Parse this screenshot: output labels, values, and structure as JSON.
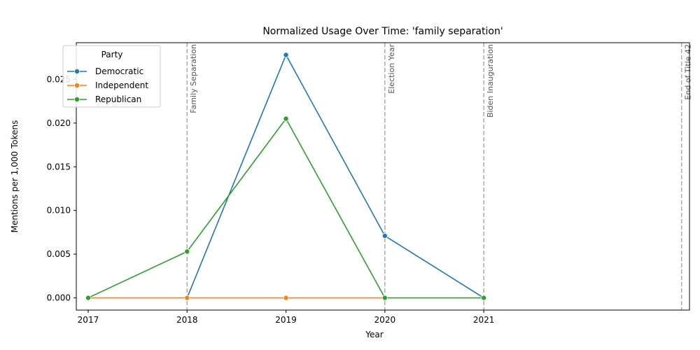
{
  "chart_data": {
    "type": "line",
    "title": "Normalized Usage Over Time: 'family separation'",
    "xlabel": "Year",
    "ylabel": "Mentions per 1,000 Tokens",
    "xlim": [
      2016.88,
      2023.08
    ],
    "ylim": [
      -0.0014,
      0.0292
    ],
    "x_ticks": [
      2017,
      2018,
      2019,
      2020,
      2021
    ],
    "y_ticks": [
      0.0,
      0.005,
      0.01,
      0.015,
      0.02,
      0.025
    ],
    "y_tick_labels": [
      "0.000",
      "0.005",
      "0.010",
      "0.015",
      "0.020",
      "0.025"
    ],
    "grid": false,
    "legend": {
      "title": "Party",
      "placement": "top-left"
    },
    "series": [
      {
        "name": "Democratic",
        "color": "#1f77b4",
        "x": [
          2018,
          2019,
          2020,
          2021
        ],
        "values": [
          0.0,
          0.0278,
          0.0071,
          0.0
        ]
      },
      {
        "name": "Independent",
        "color": "#ff7f0e",
        "x": [
          2017,
          2018,
          2019,
          2020
        ],
        "values": [
          0.0,
          0.0,
          0.0,
          0.0
        ]
      },
      {
        "name": "Republican",
        "color": "#2ca02c",
        "x": [
          2017,
          2018,
          2019,
          2020,
          2021
        ],
        "values": [
          0.0,
          0.0053,
          0.0205,
          0.0,
          0.0
        ]
      }
    ],
    "events": [
      {
        "x": 2018.0,
        "label": "Family Separation"
      },
      {
        "x": 2020.0,
        "label": "Election Year"
      },
      {
        "x": 2021.0,
        "label": "Biden Inauguration"
      },
      {
        "x": 2023.0,
        "label": "End of Title 42"
      }
    ]
  }
}
